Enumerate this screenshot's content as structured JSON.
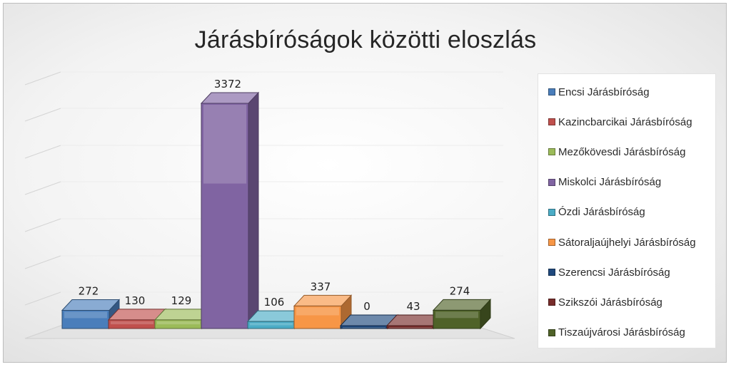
{
  "chart_data": {
    "type": "bar",
    "title": "Járásbíróságok közötti eloszlás",
    "categories": [
      "Encsi Járásbíróság",
      "Kazincbarcikai Járásbíróság",
      "Mezőkövesdi Járásbíróság",
      "Miskolci Járásbíróság",
      "Ózdi Járásbíróság",
      "Sátoraljaújhelyi Járásbíróság",
      "Szerencsi Járásbíróság",
      "Szikszói Járásbíróság",
      "Tiszaújvárosi Járásbíróság"
    ],
    "values": [
      272,
      130,
      129,
      3372,
      106,
      337,
      0,
      43,
      274
    ],
    "colors": [
      "#4a7ebb",
      "#c0504d",
      "#9bbb59",
      "#8064a2",
      "#4bacc6",
      "#f79646",
      "#1f497d",
      "#772c2a",
      "#4f6228"
    ],
    "ylim": [
      0,
      3372
    ],
    "grid": true,
    "legend_position": "right",
    "three_d": true
  }
}
